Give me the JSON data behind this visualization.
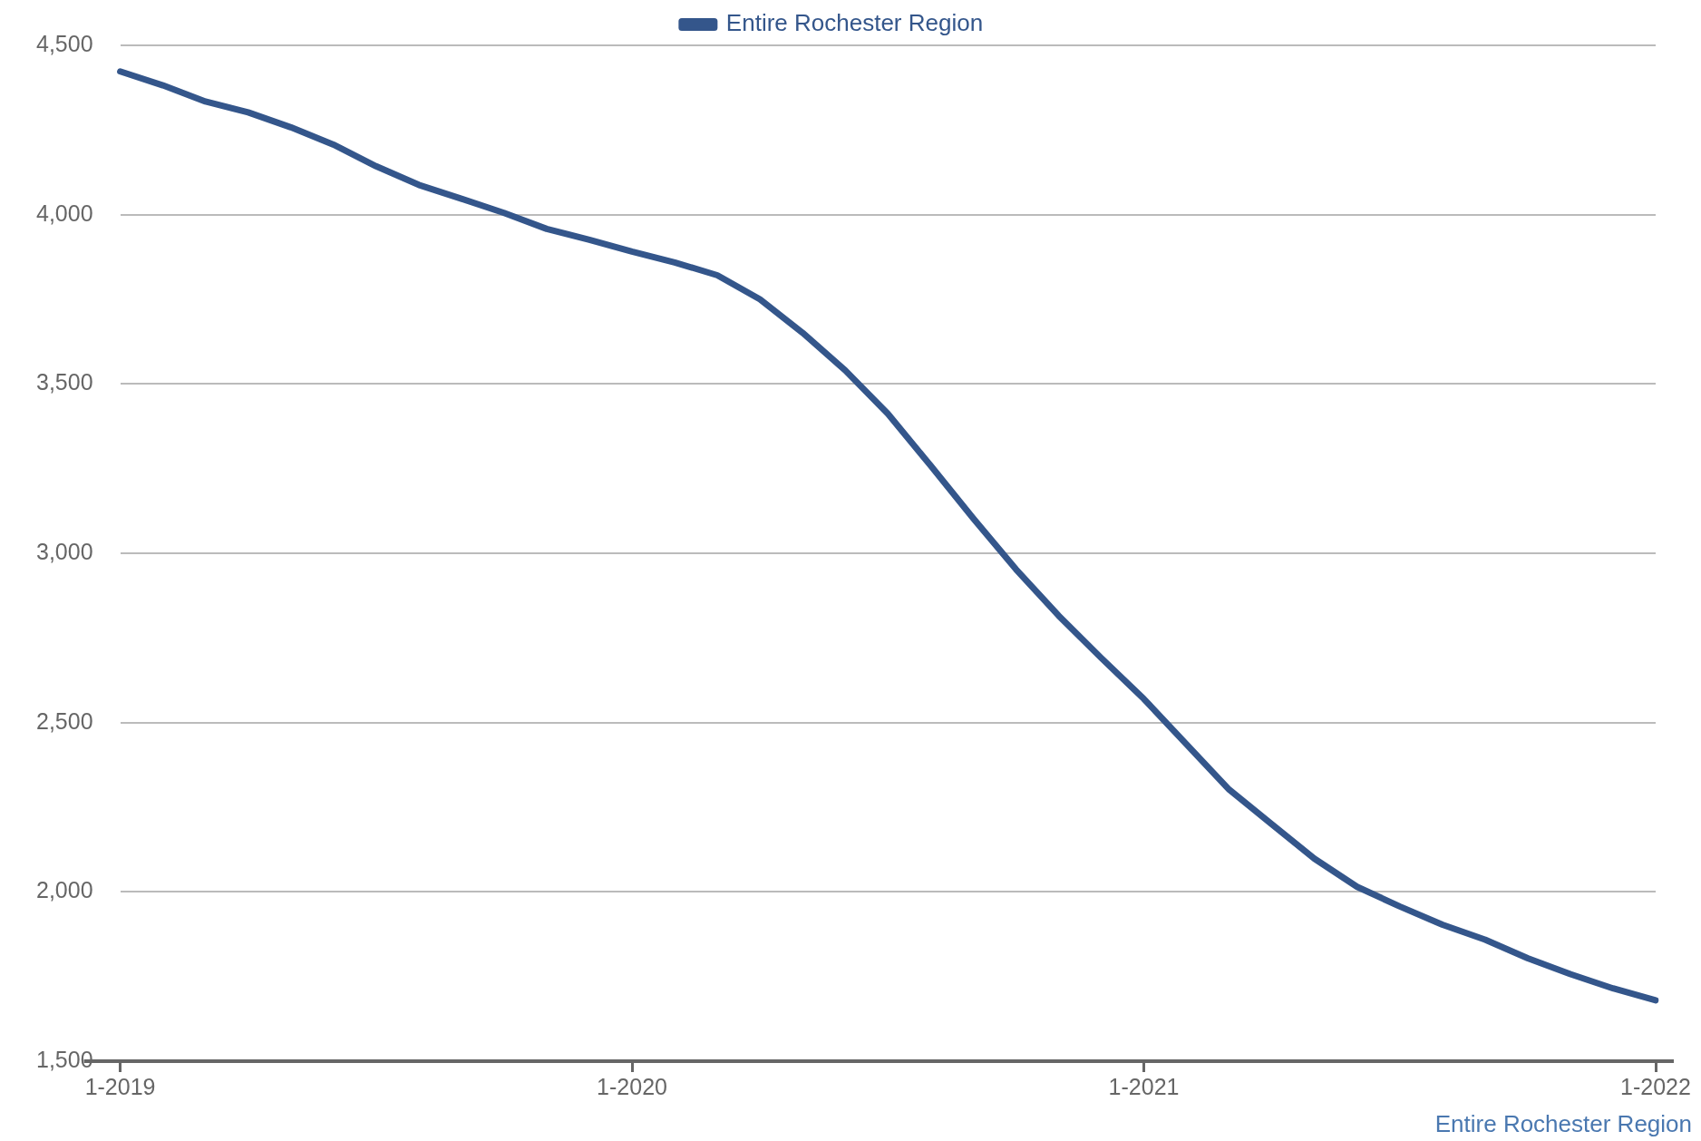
{
  "chart_data": {
    "type": "line",
    "categories": [
      "1-2019",
      null,
      null,
      null,
      null,
      null,
      null,
      null,
      null,
      null,
      null,
      null,
      "1-2020",
      null,
      null,
      null,
      null,
      null,
      null,
      null,
      null,
      null,
      null,
      null,
      "1-2021",
      null,
      null,
      null,
      null,
      null,
      null,
      null,
      null,
      null,
      null,
      null,
      "1-2022"
    ],
    "series": [
      {
        "name": "Entire Rochester Region",
        "color": "#34568b",
        "values": [
          4423,
          4382,
          4334,
          4302,
          4258,
          4207,
          4143,
          4088,
          4047,
          4005,
          3958,
          3926,
          3891,
          3859,
          3821,
          3750,
          3651,
          3540,
          3412,
          3259,
          3103,
          2953,
          2816,
          2691,
          2570,
          2436,
          2302,
          2200,
          2098,
          2015,
          1957,
          1903,
          1859,
          1804,
          1757,
          1715,
          1680
        ]
      }
    ],
    "ylim": [
      1500,
      4500
    ],
    "yticks": [
      {
        "value": 1500,
        "label": "1,500"
      },
      {
        "value": 2000,
        "label": "2,000"
      },
      {
        "value": 2500,
        "label": "2,500"
      },
      {
        "value": 3000,
        "label": "3,000"
      },
      {
        "value": 3500,
        "label": "3,500"
      },
      {
        "value": 4000,
        "label": "4,000"
      },
      {
        "value": 4500,
        "label": "4,500"
      }
    ],
    "grid": "y",
    "legend": "top",
    "marker": "none",
    "line_style": "solid",
    "annotations": [
      "Entire Rochester Region"
    ]
  }
}
